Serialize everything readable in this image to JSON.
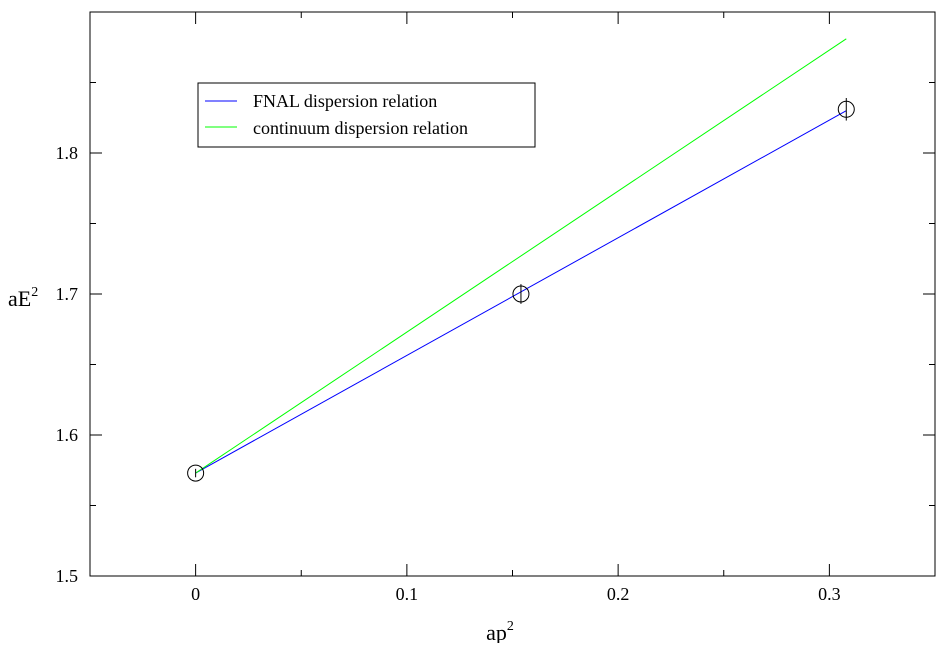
{
  "chart_data": {
    "type": "scatter",
    "title": "",
    "xlabel": "ap",
    "xlabel_sup": "2",
    "ylabel": "aE",
    "ylabel_sup": "2",
    "xlim": [
      -0.05,
      0.35
    ],
    "ylim": [
      1.5,
      1.9
    ],
    "xticks": [
      0,
      0.1,
      0.2,
      0.3
    ],
    "xtick_labels": [
      "0",
      "0.1",
      "0.2",
      "0.3"
    ],
    "xminor": [
      -0.05,
      0.05,
      0.15,
      0.25,
      0.35
    ],
    "yticks": [
      1.5,
      1.6,
      1.7,
      1.8
    ],
    "ytick_labels": [
      "1.5",
      "1.6",
      "1.7",
      "1.8"
    ],
    "yminor": [
      1.55,
      1.65,
      1.75,
      1.85
    ],
    "grid": false,
    "legend_position": "top-left",
    "points": {
      "name": "",
      "marker": "open-circle",
      "color": "#000000",
      "x": [
        0,
        0.154,
        0.308
      ],
      "y": [
        1.573,
        1.7,
        1.831
      ],
      "yerr": [
        0.003,
        0.007,
        0.008
      ]
    },
    "series": [
      {
        "name": "FNAL dispersion relation",
        "color": "#0000ff",
        "x": [
          0,
          0.308
        ],
        "y": [
          1.573,
          1.83
        ]
      },
      {
        "name": "continuum dispersion relation",
        "color": "#00ff00",
        "x": [
          0,
          0.308
        ],
        "y": [
          1.573,
          1.881
        ]
      }
    ]
  }
}
